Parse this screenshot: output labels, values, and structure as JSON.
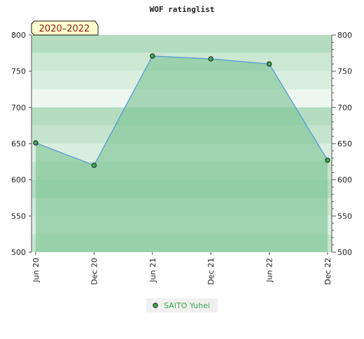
{
  "chart_data": {
    "type": "area",
    "title": "WOF ratinglist",
    "period_badge": "2020–2022",
    "xlabel": "",
    "ylabel": "",
    "categories": [
      "Jun 20",
      "Dec 20",
      "Jun 21",
      "Dec 21",
      "Jun 22",
      "Dec 22"
    ],
    "ylim": [
      500,
      800
    ],
    "yticks": [
      500,
      550,
      600,
      650,
      700,
      750,
      800
    ],
    "y_axis_sides": "left-and-right",
    "grid": true,
    "legend_position": "bottom-center",
    "series": [
      {
        "name": "SAITO Yuhei",
        "x": [
          "Jun 20",
          "Dec 20",
          "Jun 21",
          "Dec 21",
          "Jun 22",
          "Dec 22"
        ],
        "values": [
          651,
          620,
          771,
          767,
          760,
          627
        ]
      }
    ]
  },
  "colors": {
    "line": "#5a9fd4",
    "marker_fill": "#3ca852",
    "area_fill": "#7cc494",
    "legend_text": "#3aa84a",
    "badge_bg": "#ffffcc",
    "badge_text": "#8b1a1a"
  }
}
